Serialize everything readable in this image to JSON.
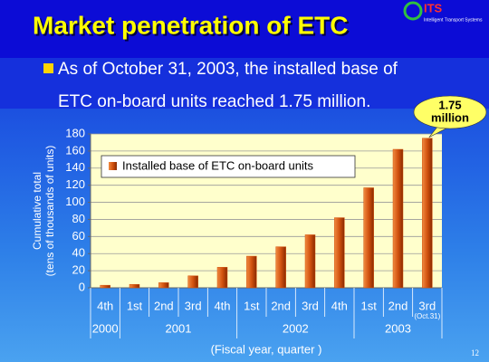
{
  "slide_title": "Market penetration of ETC",
  "logo": {
    "mark": "ITS",
    "caption": "Intelligent Transport Systems"
  },
  "bullet": [
    "As of October 31, 2003, the installed base of",
    "ETC on-board units reached 1.75 million."
  ],
  "page_number": "12",
  "chart_data": {
    "type": "bar",
    "categories": [
      "4th",
      "1st",
      "2nd",
      "3rd",
      "4th",
      "1st",
      "2nd",
      "3rd",
      "4th",
      "1st",
      "2nd",
      "3rd"
    ],
    "category_years": [
      "2000",
      "2001",
      "2001",
      "2001",
      "2001",
      "2002",
      "2002",
      "2002",
      "2002",
      "2003",
      "2003",
      "2003"
    ],
    "category_note": "(Oct.31)",
    "series": [
      {
        "name": "Installed base of ETC on-board units",
        "color": "#d2520f",
        "values": [
          3,
          4,
          6,
          14,
          24,
          37,
          48,
          62,
          82,
          117,
          162,
          175
        ]
      }
    ],
    "ylim": [
      0,
      180
    ],
    "yticks": [
      0,
      20,
      40,
      60,
      80,
      100,
      120,
      140,
      160,
      180
    ],
    "grid": true,
    "y_label": [
      "Cumulative total",
      "(tens of thousands of units)"
    ],
    "x_label": "(Fiscal year, quarter )",
    "annotation": [
      "1.75",
      "million"
    ]
  }
}
